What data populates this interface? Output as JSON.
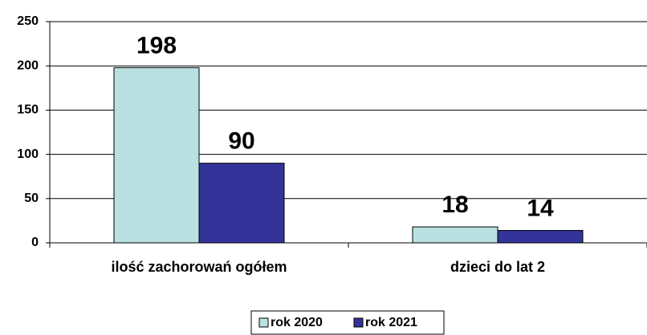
{
  "chart_data": {
    "type": "bar",
    "categories": [
      "ilość zachorowań ogółem",
      "dzieci do lat 2"
    ],
    "series": [
      {
        "name": "rok 2020",
        "color": "#b9e1e1",
        "values": [
          198,
          18
        ]
      },
      {
        "name": "rok 2021",
        "color": "#333399",
        "values": [
          90,
          14
        ]
      }
    ],
    "ylim": [
      0,
      250
    ],
    "yticks": [
      0,
      50,
      100,
      150,
      200,
      250
    ],
    "grid": true,
    "legend": "bottom"
  }
}
